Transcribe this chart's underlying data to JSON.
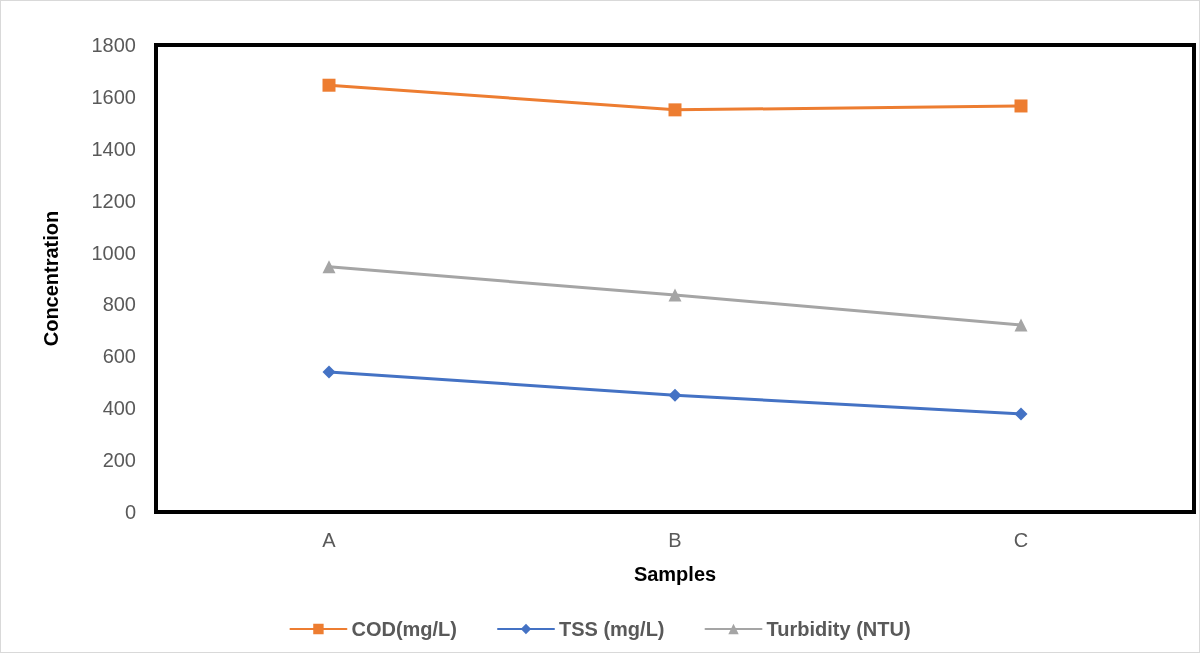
{
  "chart_data": {
    "type": "line",
    "xlabel": "Samples",
    "ylabel": "Concentration",
    "categories": [
      "A",
      "B",
      "C"
    ],
    "series": [
      {
        "name": "COD(mg/L)",
        "color": "#ed7d31",
        "marker": "square",
        "values": [
          1645,
          1550,
          1565
        ]
      },
      {
        "name": "TSS (mg/L)",
        "color": "#4472c4",
        "marker": "diamond",
        "values": [
          540,
          450,
          378
        ]
      },
      {
        "name": "Turbidity (NTU)",
        "color": "#a5a5a5",
        "marker": "triangle",
        "values": [
          945,
          836,
          721
        ]
      }
    ],
    "ylim": [
      0,
      1800
    ],
    "yticks": [
      0,
      200,
      400,
      600,
      800,
      1000,
      1200,
      1400,
      1600,
      1800
    ],
    "grid": false,
    "legend": "bottom",
    "line_style": "solid"
  }
}
